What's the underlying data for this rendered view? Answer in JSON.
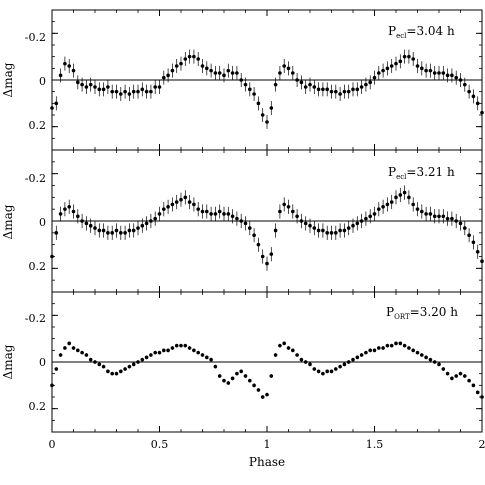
{
  "figure": {
    "xlabel": "Phase",
    "ylabel": "Δmag"
  },
  "chart_data": [
    {
      "type": "scatter",
      "panel": "top",
      "title_main": "P",
      "title_sub": "ecl",
      "title_value": "=3.04 h",
      "xlabel": "Phase",
      "ylabel": "Δmag",
      "xlim": [
        0,
        2
      ],
      "ylim": [
        0.3,
        -0.3
      ],
      "xticks": [
        0,
        0.5,
        1,
        1.5,
        2
      ],
      "xtick_labels": [
        "0",
        "0.5",
        "1",
        "1.5",
        "2"
      ],
      "yticks": [
        -0.2,
        0,
        0.2
      ],
      "ytick_labels": [
        "-0.2",
        "0",
        "0.2"
      ],
      "reference_line_y": 0,
      "errorbar_half": 0.03,
      "series": [
        {
          "x": [
            0.0,
            0.02,
            0.04,
            0.06,
            0.08,
            0.1,
            0.12,
            0.14,
            0.16,
            0.18,
            0.2,
            0.22,
            0.24,
            0.26,
            0.28,
            0.3,
            0.32,
            0.34,
            0.36,
            0.38,
            0.4,
            0.42,
            0.44,
            0.46,
            0.48,
            0.5,
            0.52,
            0.54,
            0.56,
            0.58,
            0.6,
            0.62,
            0.64,
            0.66,
            0.68,
            0.7,
            0.72,
            0.74,
            0.76,
            0.78,
            0.8,
            0.82,
            0.84,
            0.86,
            0.88,
            0.9,
            0.92,
            0.94,
            0.96,
            0.98,
            1.0,
            1.02,
            1.04,
            1.06,
            1.08,
            1.1,
            1.12,
            1.14,
            1.16,
            1.18,
            1.2,
            1.22,
            1.24,
            1.26,
            1.28,
            1.3,
            1.32,
            1.34,
            1.36,
            1.38,
            1.4,
            1.42,
            1.44,
            1.46,
            1.48,
            1.5,
            1.52,
            1.54,
            1.56,
            1.58,
            1.6,
            1.62,
            1.64,
            1.66,
            1.68,
            1.7,
            1.72,
            1.74,
            1.76,
            1.78,
            1.8,
            1.82,
            1.84,
            1.86,
            1.88,
            1.9,
            1.92,
            1.94,
            1.96,
            1.98,
            2.0
          ],
          "y": [
            0.12,
            0.1,
            -0.02,
            -0.07,
            -0.06,
            -0.04,
            0.01,
            0.02,
            0.03,
            0.02,
            0.03,
            0.04,
            0.04,
            0.03,
            0.05,
            0.05,
            0.06,
            0.05,
            0.06,
            0.05,
            0.05,
            0.04,
            0.05,
            0.05,
            0.03,
            0.03,
            -0.01,
            -0.02,
            -0.04,
            -0.06,
            -0.07,
            -0.09,
            -0.1,
            -0.1,
            -0.09,
            -0.06,
            -0.05,
            -0.04,
            -0.03,
            -0.03,
            -0.02,
            -0.04,
            -0.03,
            -0.03,
            0.0,
            0.02,
            0.04,
            0.06,
            0.1,
            0.15,
            0.18,
            0.12,
            0.02,
            -0.03,
            -0.06,
            -0.05,
            -0.03,
            0.0,
            0.01,
            0.03,
            0.02,
            0.03,
            0.04,
            0.04,
            0.04,
            0.05,
            0.05,
            0.06,
            0.05,
            0.05,
            0.04,
            0.04,
            0.03,
            0.02,
            0.01,
            -0.01,
            -0.03,
            -0.04,
            -0.05,
            -0.06,
            -0.07,
            -0.08,
            -0.1,
            -0.1,
            -0.09,
            -0.06,
            -0.05,
            -0.04,
            -0.04,
            -0.03,
            -0.03,
            -0.03,
            -0.02,
            -0.02,
            -0.01,
            0.0,
            0.02,
            0.05,
            0.07,
            0.1,
            0.14
          ]
        }
      ]
    },
    {
      "type": "scatter",
      "panel": "middle",
      "title_main": "P",
      "title_sub": "ecl",
      "title_value": "=3.21 h",
      "xlabel": "Phase",
      "ylabel": "Δmag",
      "xlim": [
        0,
        2
      ],
      "ylim": [
        0.3,
        -0.3
      ],
      "xticks": [
        0,
        0.5,
        1,
        1.5,
        2
      ],
      "xtick_labels": [
        "0",
        "0.5",
        "1",
        "1.5",
        "2"
      ],
      "yticks": [
        -0.2,
        0,
        0.2
      ],
      "ytick_labels": [
        "-0.2",
        "0",
        "0.2"
      ],
      "reference_line_y": 0,
      "errorbar_half": 0.03,
      "series": [
        {
          "x": [
            0.0,
            0.02,
            0.04,
            0.06,
            0.08,
            0.1,
            0.12,
            0.14,
            0.16,
            0.18,
            0.2,
            0.22,
            0.24,
            0.26,
            0.28,
            0.3,
            0.32,
            0.34,
            0.36,
            0.38,
            0.4,
            0.42,
            0.44,
            0.46,
            0.48,
            0.5,
            0.52,
            0.54,
            0.56,
            0.58,
            0.6,
            0.62,
            0.64,
            0.66,
            0.68,
            0.7,
            0.72,
            0.74,
            0.76,
            0.78,
            0.8,
            0.82,
            0.84,
            0.86,
            0.88,
            0.9,
            0.92,
            0.94,
            0.96,
            0.98,
            1.0,
            1.02,
            1.04,
            1.06,
            1.08,
            1.1,
            1.12,
            1.14,
            1.16,
            1.18,
            1.2,
            1.22,
            1.24,
            1.26,
            1.28,
            1.3,
            1.32,
            1.34,
            1.36,
            1.38,
            1.4,
            1.42,
            1.44,
            1.46,
            1.48,
            1.5,
            1.52,
            1.54,
            1.56,
            1.58,
            1.6,
            1.62,
            1.64,
            1.66,
            1.68,
            1.7,
            1.72,
            1.74,
            1.76,
            1.78,
            1.8,
            1.82,
            1.84,
            1.86,
            1.88,
            1.9,
            1.92,
            1.94,
            1.96,
            1.98,
            2.0
          ],
          "y": [
            0.15,
            0.05,
            -0.03,
            -0.05,
            -0.06,
            -0.04,
            -0.02,
            0.0,
            0.01,
            0.02,
            0.03,
            0.04,
            0.04,
            0.05,
            0.05,
            0.04,
            0.05,
            0.05,
            0.04,
            0.04,
            0.03,
            0.02,
            0.01,
            0.0,
            -0.01,
            -0.03,
            -0.05,
            -0.06,
            -0.07,
            -0.08,
            -0.09,
            -0.1,
            -0.08,
            -0.07,
            -0.05,
            -0.04,
            -0.04,
            -0.03,
            -0.03,
            -0.04,
            -0.03,
            -0.03,
            -0.02,
            -0.01,
            0.0,
            0.01,
            0.03,
            0.06,
            0.1,
            0.15,
            0.18,
            0.14,
            0.04,
            -0.04,
            -0.07,
            -0.06,
            -0.04,
            -0.02,
            0.0,
            0.01,
            0.02,
            0.03,
            0.04,
            0.04,
            0.05,
            0.05,
            0.05,
            0.04,
            0.04,
            0.03,
            0.02,
            0.01,
            0.0,
            -0.01,
            -0.02,
            -0.03,
            -0.05,
            -0.06,
            -0.07,
            -0.08,
            -0.1,
            -0.11,
            -0.12,
            -0.1,
            -0.07,
            -0.05,
            -0.04,
            -0.03,
            -0.03,
            -0.02,
            -0.02,
            -0.02,
            -0.01,
            -0.01,
            0.0,
            0.01,
            0.03,
            0.06,
            0.09,
            0.13,
            0.17
          ]
        }
      ]
    },
    {
      "type": "scatter",
      "panel": "bottom",
      "title_main": "P",
      "title_sub": "ORT",
      "title_value": "=3.20 h",
      "xlabel": "Phase",
      "ylabel": "Δmag",
      "xlim": [
        0,
        2
      ],
      "ylim": [
        0.3,
        -0.3
      ],
      "xticks": [
        0,
        0.5,
        1,
        1.5,
        2
      ],
      "xtick_labels": [
        "0",
        "0.5",
        "1",
        "1.5",
        "2"
      ],
      "yticks": [
        -0.2,
        0,
        0.2
      ],
      "ytick_labels": [
        "-0.2",
        "0",
        "0.2"
      ],
      "reference_line_y": 0,
      "errorbar_half": 0.008,
      "series": [
        {
          "x": [
            0.0,
            0.02,
            0.04,
            0.06,
            0.08,
            0.1,
            0.12,
            0.14,
            0.16,
            0.18,
            0.2,
            0.22,
            0.24,
            0.26,
            0.28,
            0.3,
            0.32,
            0.34,
            0.36,
            0.38,
            0.4,
            0.42,
            0.44,
            0.46,
            0.48,
            0.5,
            0.52,
            0.54,
            0.56,
            0.58,
            0.6,
            0.62,
            0.64,
            0.66,
            0.68,
            0.7,
            0.72,
            0.74,
            0.76,
            0.78,
            0.8,
            0.82,
            0.84,
            0.86,
            0.88,
            0.9,
            0.92,
            0.94,
            0.96,
            0.98,
            1.0,
            1.02,
            1.04,
            1.06,
            1.08,
            1.1,
            1.12,
            1.14,
            1.16,
            1.18,
            1.2,
            1.22,
            1.24,
            1.26,
            1.28,
            1.3,
            1.32,
            1.34,
            1.36,
            1.38,
            1.4,
            1.42,
            1.44,
            1.46,
            1.48,
            1.5,
            1.52,
            1.54,
            1.56,
            1.58,
            1.6,
            1.62,
            1.64,
            1.66,
            1.68,
            1.7,
            1.72,
            1.74,
            1.76,
            1.78,
            1.8,
            1.82,
            1.84,
            1.86,
            1.88,
            1.9,
            1.92,
            1.94,
            1.96,
            1.98,
            2.0
          ],
          "y": [
            0.1,
            0.03,
            -0.03,
            -0.06,
            -0.08,
            -0.06,
            -0.05,
            -0.04,
            -0.03,
            -0.01,
            0.0,
            0.01,
            0.02,
            0.04,
            0.05,
            0.05,
            0.04,
            0.03,
            0.02,
            0.01,
            0.0,
            -0.01,
            -0.02,
            -0.03,
            -0.04,
            -0.04,
            -0.05,
            -0.05,
            -0.06,
            -0.07,
            -0.07,
            -0.07,
            -0.06,
            -0.05,
            -0.04,
            -0.03,
            -0.02,
            -0.01,
            0.02,
            0.06,
            0.08,
            0.09,
            0.07,
            0.05,
            0.04,
            0.06,
            0.08,
            0.1,
            0.12,
            0.15,
            0.14,
            0.06,
            -0.03,
            -0.07,
            -0.08,
            -0.06,
            -0.05,
            -0.03,
            -0.01,
            0.0,
            0.01,
            0.03,
            0.04,
            0.05,
            0.04,
            0.04,
            0.03,
            0.02,
            0.01,
            0.0,
            -0.01,
            -0.02,
            -0.03,
            -0.04,
            -0.05,
            -0.05,
            -0.06,
            -0.06,
            -0.07,
            -0.07,
            -0.08,
            -0.08,
            -0.07,
            -0.06,
            -0.05,
            -0.04,
            -0.03,
            -0.02,
            -0.01,
            0.0,
            0.01,
            0.03,
            0.05,
            0.07,
            0.06,
            0.05,
            0.06,
            0.08,
            0.1,
            0.13,
            0.15
          ]
        }
      ]
    }
  ]
}
